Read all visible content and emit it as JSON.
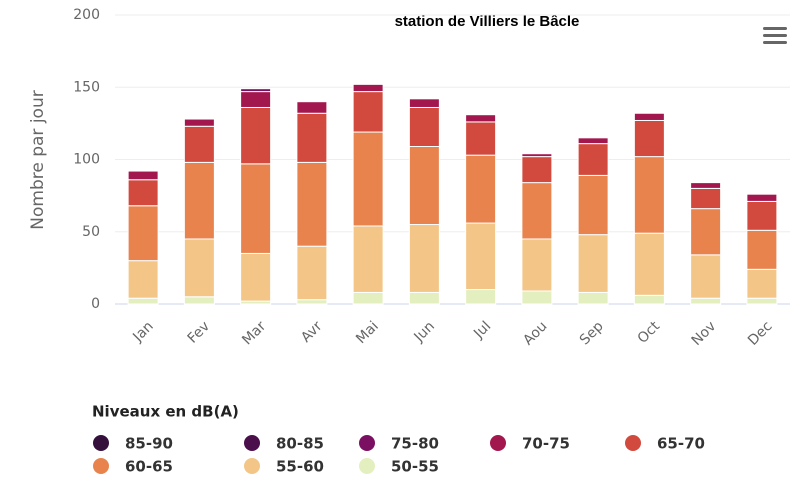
{
  "chart_data": {
    "type": "stacked_bar",
    "title": "station de Villiers le Bâcle",
    "y_label": "Nombre par jour",
    "legend_title": "Niveaux en dB(A)",
    "categories": [
      "Jan",
      "Fev",
      "Mar",
      "Avr",
      "Mai",
      "Jun",
      "Jul",
      "Aou",
      "Sep",
      "Oct",
      "Nov",
      "Dec"
    ],
    "series": [
      {
        "name": "85-90",
        "color": "#35103d",
        "values": [
          0,
          0,
          0,
          0,
          0,
          0,
          0,
          0,
          0,
          0,
          0,
          0
        ]
      },
      {
        "name": "80-85",
        "color": "#4b0f4c",
        "values": [
          0,
          0,
          0,
          0,
          0,
          0,
          0,
          0,
          0,
          0,
          0,
          0
        ]
      },
      {
        "name": "75-80",
        "color": "#7b1062",
        "values": [
          0,
          0,
          2,
          0,
          0,
          0,
          0,
          0,
          0,
          0,
          0,
          0
        ]
      },
      {
        "name": "70-75",
        "color": "#a3174f",
        "values": [
          6,
          5,
          11,
          8,
          5,
          6,
          5,
          2,
          4,
          5,
          4,
          5
        ]
      },
      {
        "name": "65-70",
        "color": "#d24a3e",
        "values": [
          18,
          25,
          39,
          34,
          28,
          27,
          23,
          18,
          22,
          25,
          14,
          20
        ]
      },
      {
        "name": "60-65",
        "color": "#e8834e",
        "values": [
          38,
          53,
          62,
          58,
          65,
          54,
          47,
          39,
          41,
          53,
          32,
          27
        ]
      },
      {
        "name": "55-60",
        "color": "#f3c688",
        "values": [
          26,
          40,
          33,
          37,
          46,
          47,
          46,
          36,
          40,
          43,
          30,
          20
        ]
      },
      {
        "name": "50-55",
        "color": "#e4efc0",
        "values": [
          4,
          5,
          2,
          3,
          8,
          8,
          10,
          9,
          8,
          6,
          4,
          4
        ]
      }
    ],
    "ylim": [
      0,
      200
    ],
    "yticks": [
      0,
      50,
      100,
      150,
      200
    ],
    "grid": true
  }
}
